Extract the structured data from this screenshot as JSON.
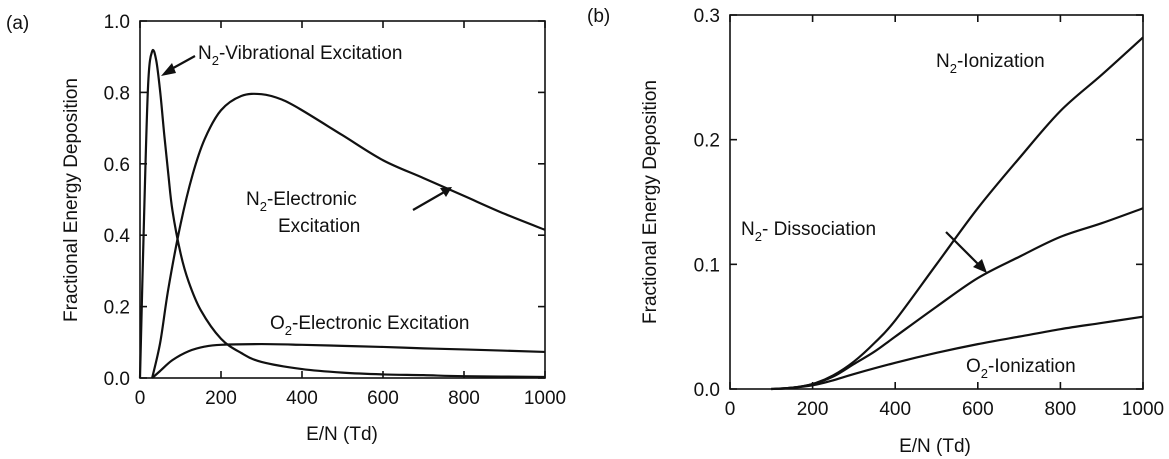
{
  "chart_data": [
    {
      "type": "line",
      "panel_label": "(a)",
      "xlabel": "E/N (Td)",
      "ylabel": "Fractional Energy Deposition",
      "xlim": [
        0,
        1000
      ],
      "ylim": [
        0,
        1.0
      ],
      "xticks": [
        0,
        200,
        400,
        600,
        800,
        1000
      ],
      "yticks": [
        0.0,
        0.2,
        0.4,
        0.6,
        0.8,
        1.0
      ],
      "xtick_labels": [
        "0",
        "200",
        "400",
        "600",
        "800",
        "1000"
      ],
      "ytick_labels": [
        "0.0",
        "0.2",
        "0.4",
        "0.6",
        "0.8",
        "1.0"
      ],
      "grid": false,
      "series": [
        {
          "annotation": {
            "species": "N",
            "subscript": "2",
            "text": "-Vibrational Excitation"
          },
          "x": [
            0,
            10,
            20,
            30,
            40,
            50,
            60,
            70,
            80,
            100,
            120,
            150,
            200,
            250,
            300,
            400,
            500,
            600,
            700,
            800,
            1000
          ],
          "y": [
            0.0,
            0.45,
            0.82,
            0.915,
            0.89,
            0.8,
            0.68,
            0.57,
            0.47,
            0.35,
            0.27,
            0.19,
            0.11,
            0.07,
            0.045,
            0.025,
            0.015,
            0.01,
            0.008,
            0.005,
            0.003
          ]
        },
        {
          "annotation": {
            "species": "N",
            "subscript": "2",
            "line1": "-Electronic",
            "line2": "Excitation"
          },
          "x": [
            30,
            50,
            70,
            100,
            130,
            160,
            200,
            250,
            300,
            350,
            400,
            500,
            600,
            700,
            800,
            900,
            1000
          ],
          "y": [
            0.0,
            0.1,
            0.25,
            0.43,
            0.57,
            0.67,
            0.75,
            0.79,
            0.795,
            0.78,
            0.75,
            0.68,
            0.61,
            0.56,
            0.51,
            0.46,
            0.415
          ]
        },
        {
          "annotation": {
            "species": "O",
            "subscript": "2",
            "text": "-Electronic Excitation"
          },
          "x": [
            30,
            50,
            80,
            120,
            160,
            200,
            300,
            400,
            500,
            600,
            700,
            800,
            1000
          ],
          "y": [
            0.0,
            0.02,
            0.05,
            0.075,
            0.088,
            0.093,
            0.095,
            0.093,
            0.09,
            0.087,
            0.083,
            0.08,
            0.073
          ]
        }
      ]
    },
    {
      "type": "line",
      "panel_label": "(b)",
      "xlabel": "E/N (Td)",
      "ylabel": "Fractional Energy Deposition",
      "xlim": [
        0,
        1000
      ],
      "ylim": [
        0,
        0.3
      ],
      "xticks": [
        0,
        200,
        400,
        600,
        800,
        1000
      ],
      "yticks": [
        0.0,
        0.1,
        0.2,
        0.3
      ],
      "xtick_labels": [
        "0",
        "200",
        "400",
        "600",
        "800",
        "1000"
      ],
      "ytick_labels": [
        "0.0",
        "0.1",
        "0.2",
        "0.3"
      ],
      "grid": false,
      "series": [
        {
          "annotation": {
            "species": "N",
            "subscript": "2",
            "text": "-Ionization"
          },
          "x": [
            100,
            150,
            200,
            250,
            300,
            350,
            400,
            500,
            600,
            700,
            800,
            900,
            1000
          ],
          "y": [
            0.0,
            0.001,
            0.004,
            0.011,
            0.022,
            0.037,
            0.055,
            0.1,
            0.145,
            0.185,
            0.223,
            0.252,
            0.282
          ]
        },
        {
          "annotation": {
            "species": "N",
            "subscript": "2",
            "text": "- Dissociation"
          },
          "x": [
            100,
            150,
            200,
            250,
            300,
            350,
            400,
            500,
            600,
            700,
            800,
            900,
            1000
          ],
          "y": [
            0.0,
            0.001,
            0.004,
            0.01,
            0.02,
            0.03,
            0.042,
            0.066,
            0.089,
            0.106,
            0.122,
            0.133,
            0.145
          ]
        },
        {
          "annotation": {
            "species": "O",
            "subscript": "2",
            "text": "-Ionization"
          },
          "x": [
            100,
            150,
            200,
            250,
            300,
            400,
            500,
            600,
            700,
            800,
            900,
            1000
          ],
          "y": [
            0.0,
            0.001,
            0.003,
            0.007,
            0.012,
            0.021,
            0.029,
            0.036,
            0.042,
            0.048,
            0.053,
            0.058
          ]
        }
      ]
    }
  ]
}
